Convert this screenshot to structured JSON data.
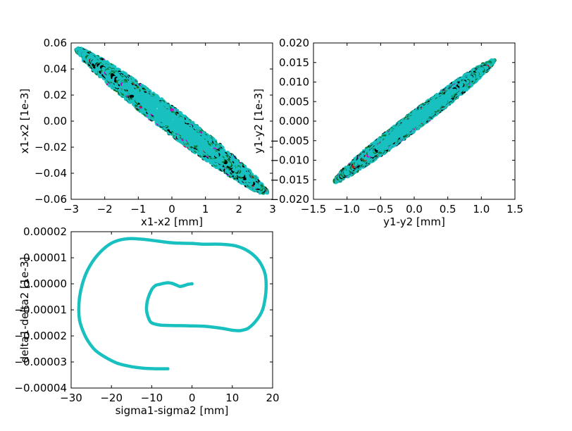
{
  "chart_data": [
    {
      "type": "scatter",
      "title": "",
      "xlabel": "x1-x2 [mm]",
      "ylabel": "x1-x2 [1e-3]",
      "xlim": [
        -3,
        3
      ],
      "ylim": [
        -0.06,
        0.06
      ],
      "xticks": [
        "−3",
        "−2",
        "−1",
        "0",
        "1",
        "2",
        "3"
      ],
      "yticks": [
        "−0.06",
        "−0.04",
        "−0.02",
        "0.00",
        "0.02",
        "0.04",
        "0.06"
      ],
      "grid": false,
      "distribution": {
        "shape": "tilted ellipse",
        "center": [
          0,
          0
        ],
        "tips": [
          [
            -2.85,
            0.055
          ],
          [
            2.85,
            -0.055
          ]
        ],
        "half_width_y": 0.011
      },
      "colors": {
        "dense": "#19c0c0",
        "mid": "#0a7a2a",
        "low": "#000000",
        "rare": [
          "#c800c8",
          "#c01010"
        ]
      }
    },
    {
      "type": "scatter",
      "title": "",
      "xlabel": "y1-y2 [mm]",
      "ylabel": "y1-y2 [1e-3]",
      "xlim": [
        -1.5,
        1.5
      ],
      "ylim": [
        -0.02,
        0.02
      ],
      "xticks": [
        "−1.5",
        "−1.0",
        "−0.5",
        "0.0",
        "0.5",
        "1.0",
        "1.5"
      ],
      "yticks": [
        "−0.020",
        "−0.015",
        "−0.010",
        "−0.005",
        "0.000",
        "0.005",
        "0.010",
        "0.015",
        "0.020"
      ],
      "grid": false,
      "distribution": {
        "shape": "tilted ellipse",
        "center": [
          0,
          0
        ],
        "tips": [
          [
            -1.2,
            -0.0155
          ],
          [
            1.2,
            0.0155
          ]
        ],
        "half_width_y": 0.0026
      },
      "colors": {
        "dense": "#19c0c0",
        "mid": "#0a7a2a",
        "low": "#000000",
        "rare": [
          "#c800c8",
          "#c01010"
        ]
      }
    },
    {
      "type": "line",
      "title": "",
      "xlabel": "sigma1-sigma2 [mm]",
      "ylabel": "delta1-delta2 [1e-3]",
      "xlim": [
        -30,
        20
      ],
      "ylim": [
        -4e-05,
        2e-05
      ],
      "xticks": [
        "−30",
        "−20",
        "−10",
        "0",
        "10",
        "20"
      ],
      "yticks": [
        "−0.00004",
        "−0.00003",
        "−0.00002",
        "−0.00001",
        "0.00000",
        "0.00001",
        "0.00002"
      ],
      "grid": false,
      "color": "#19c0c0",
      "x": [
        0,
        -1,
        -2,
        -3,
        -4,
        -5,
        -6,
        -7,
        -8,
        -9,
        -10,
        -11,
        -11.3,
        -11.2,
        -10.7,
        -10,
        -8,
        -5,
        -1,
        3,
        7,
        10,
        11.5,
        12.5,
        14,
        16,
        17.5,
        18.2,
        18.4,
        18,
        16.5,
        14,
        11,
        7,
        3,
        0,
        -3,
        -5.5,
        -10,
        -13,
        -16,
        -19,
        -21.5,
        -24,
        -26,
        -27.2,
        -27.9,
        -28.1,
        -27.9,
        -27.1,
        -25.8,
        -24,
        -21.5,
        -18.5,
        -15,
        -12,
        -9,
        -7,
        -6
      ],
      "y": [
        0.0,
        -2e-07,
        -7e-07,
        -1e-06,
        -4e-07,
        2e-07,
        4e-07,
        2e-07,
        -2e-07,
        -6e-07,
        -2.2e-06,
        -6e-06,
        -9e-06,
        -1.1e-05,
        -1.35e-05,
        -1.5e-05,
        -1.58e-05,
        -1.6e-05,
        -1.61e-05,
        -1.63e-05,
        -1.7e-05,
        -1.78e-05,
        -1.8e-05,
        -1.78e-05,
        -1.7e-05,
        -1.4e-05,
        -1e-05,
        -5e-06,
        0.0,
        4.5e-06,
        9e-06,
        1.25e-05,
        1.45e-05,
        1.52e-05,
        1.52e-05,
        1.55e-05,
        1.56e-05,
        1.58e-05,
        1.67e-05,
        1.72e-05,
        1.73e-05,
        1.63e-05,
        1.4e-05,
        1e-05,
        5e-06,
        0.0,
        -5e-06,
        -1e-05,
        -1.4e-05,
        -1.8e-05,
        -2.2e-05,
        -2.55e-05,
        -2.82e-05,
        -3.05e-05,
        -3.18e-05,
        -3.24e-05,
        -3.26e-05,
        -3.26e-05,
        -3.26e-05
      ]
    }
  ]
}
